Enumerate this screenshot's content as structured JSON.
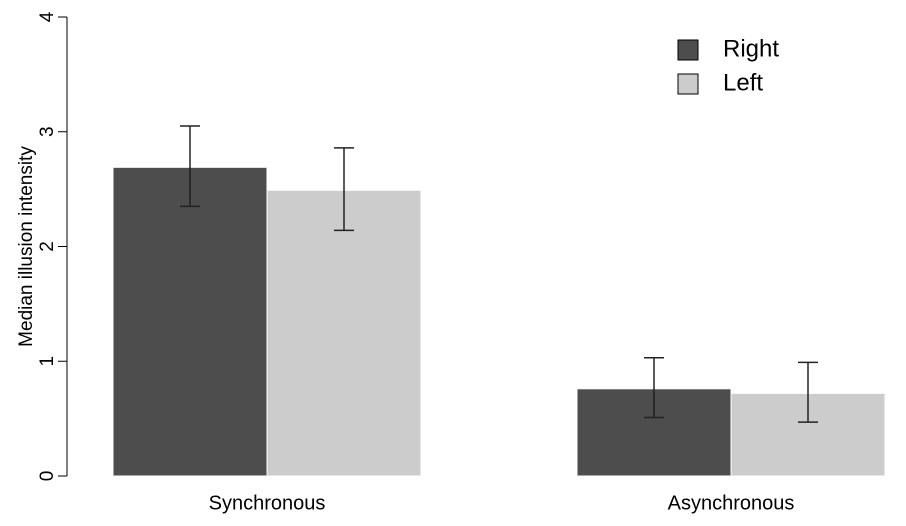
{
  "chart_data": {
    "type": "bar",
    "title": "",
    "xlabel": "",
    "ylabel": "Median illusion intensity",
    "ylim": [
      0,
      4
    ],
    "yticks": [
      "0",
      "1",
      "2",
      "3",
      "4"
    ],
    "categories": [
      "Synchronous",
      "Asynchronous"
    ],
    "series": [
      {
        "name": "Right",
        "color": "#4d4d4d",
        "values": [
          2.69,
          0.76
        ],
        "error_low": [
          2.35,
          0.51
        ],
        "error_high": [
          3.05,
          1.03
        ]
      },
      {
        "name": "Left",
        "color": "#cccccc",
        "values": [
          2.49,
          0.72
        ],
        "error_low": [
          2.14,
          0.47
        ],
        "error_high": [
          2.86,
          0.99
        ]
      }
    ],
    "legend_position": "top-right",
    "grid": false
  }
}
